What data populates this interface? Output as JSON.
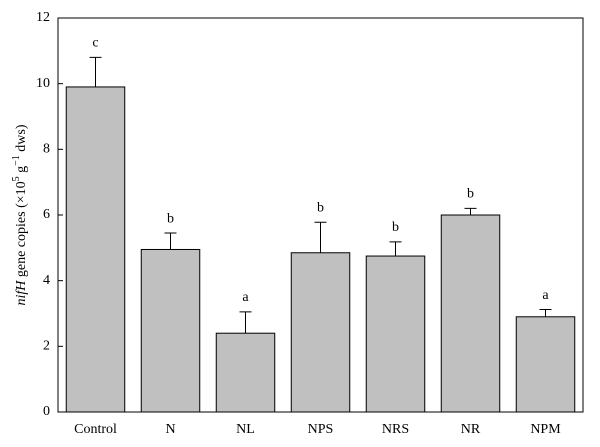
{
  "chart_data": {
    "type": "bar",
    "y_label": [
      "nifH",
      " gene copies (×10",
      "5",
      " g",
      "−1",
      " dws)"
    ],
    "categories": [
      "Control",
      "N",
      "NL",
      "NPS",
      "NRS",
      "NR",
      "NPM"
    ],
    "values": [
      9.9,
      4.95,
      2.4,
      4.85,
      4.75,
      6.0,
      2.9
    ],
    "errors": [
      0.9,
      0.5,
      0.65,
      0.93,
      0.43,
      0.2,
      0.22
    ],
    "annotations": [
      "c",
      "b",
      "a",
      "b",
      "b",
      "b",
      "a"
    ],
    "color": "#c0c0c0",
    "ylim": [
      0,
      12
    ],
    "yticks": [
      0,
      2,
      4,
      6,
      8,
      10,
      12
    ]
  }
}
